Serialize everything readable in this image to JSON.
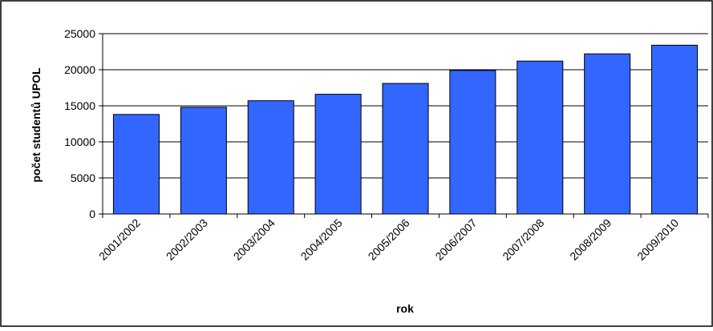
{
  "chart_data": {
    "type": "bar",
    "title": "",
    "xlabel": "rok",
    "ylabel": "počet studentů UPOL",
    "categories": [
      "2001/2002",
      "2002/2003",
      "2003/2004",
      "2004/2005",
      "2005/2006",
      "2006/2007",
      "2007/2008",
      "2008/2009",
      "2009/2010"
    ],
    "values": [
      13800,
      14800,
      15700,
      16600,
      18100,
      19900,
      21200,
      22200,
      23400
    ],
    "ylim": [
      0,
      25000
    ],
    "yticks": [
      0,
      5000,
      10000,
      15000,
      20000,
      25000
    ],
    "grid": true,
    "legend": "none",
    "bar_color": "#3366ff",
    "bar_edge_color": "#000000"
  }
}
